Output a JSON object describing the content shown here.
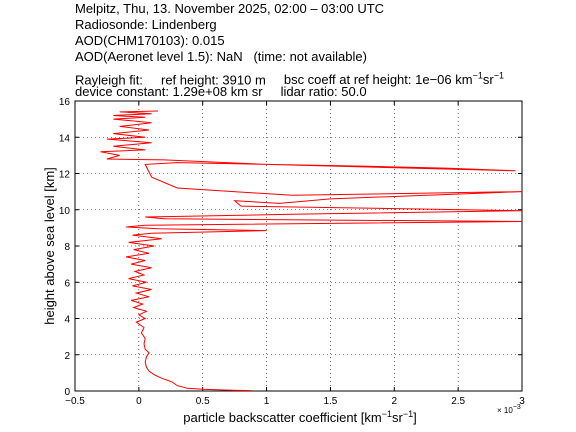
{
  "header": {
    "line1": "Melpitz, Thu, 13. November 2025, 02:00 – 03:00 UTC",
    "line2": "Radiosonde: Lindenberg",
    "line3": "AOD(CHM170103): 0.015",
    "line4_main": "AOD(Aeronet level 1.5): NaN",
    "line4_note": "(time: not available)",
    "rayleigh_label": "Rayleigh fit:",
    "ref_height": "ref height: 3910 m",
    "bsc_pre": "bsc coeff at ref height: 1e−06 km",
    "bsc_mid": "sr",
    "device_constant": "device constant: 1.29e+08 km sr",
    "lidar_ratio": "lidar ratio: 50.0",
    "exp_minus1": "−1"
  },
  "chart_data": {
    "type": "line",
    "xlabel_pre": "particle backscatter coefficient [km",
    "xlabel_mid": "sr",
    "xlabel_end": "]",
    "ylabel": "height above sea level [km]",
    "x_multiplier": "× 10",
    "x_multiplier_exp": "−3",
    "xlim": [
      -0.5,
      3.0
    ],
    "ylim": [
      0,
      16
    ],
    "xticks": [
      -0.5,
      0,
      0.5,
      1,
      1.5,
      2,
      2.5,
      3
    ],
    "xtick_labels": [
      "−0.5",
      "0",
      "0.5",
      "1",
      "1.5",
      "2",
      "2.5",
      "3"
    ],
    "yticks": [
      0,
      2,
      4,
      6,
      8,
      10,
      12,
      14,
      16
    ],
    "ytick_labels": [
      "0",
      "2",
      "4",
      "6",
      "8",
      "10",
      "12",
      "14",
      "16"
    ],
    "grid": true,
    "line_color": "#ff0000",
    "series": [
      {
        "points": [
          [
            0.88,
            0.02
          ],
          [
            0.7,
            0.05
          ],
          [
            0.5,
            0.1
          ],
          [
            0.38,
            0.15
          ],
          [
            0.3,
            0.3
          ],
          [
            0.26,
            0.5
          ],
          [
            0.18,
            0.7
          ],
          [
            0.12,
            0.9
          ],
          [
            0.08,
            1.1
          ],
          [
            0.06,
            1.3
          ],
          [
            0.05,
            1.6
          ],
          [
            0.06,
            1.9
          ],
          [
            0.08,
            2.1
          ],
          [
            0.05,
            2.3
          ],
          [
            0.04,
            2.6
          ],
          [
            0.05,
            2.9
          ],
          [
            0.02,
            3.2
          ],
          [
            0.04,
            3.5
          ],
          [
            -0.02,
            3.8
          ],
          [
            0.05,
            4.0
          ],
          [
            0.0,
            4.2
          ],
          [
            0.06,
            4.4
          ],
          [
            -0.04,
            4.6
          ],
          [
            0.03,
            4.8
          ],
          [
            -0.06,
            5.0
          ],
          [
            0.08,
            5.2
          ],
          [
            -0.02,
            5.4
          ],
          [
            0.1,
            5.6
          ],
          [
            -0.05,
            5.8
          ],
          [
            0.06,
            6.0
          ],
          [
            -0.08,
            6.2
          ],
          [
            0.04,
            6.4
          ],
          [
            -0.03,
            6.6
          ],
          [
            0.1,
            6.8
          ],
          [
            -0.06,
            7.0
          ],
          [
            0.05,
            7.2
          ],
          [
            -0.1,
            7.4
          ],
          [
            0.08,
            7.6
          ],
          [
            -0.04,
            7.8
          ],
          [
            0.12,
            8.0
          ],
          [
            -0.08,
            8.2
          ],
          [
            0.18,
            8.4
          ],
          [
            -0.05,
            8.6
          ],
          [
            0.1,
            8.7
          ],
          [
            1.0,
            8.85
          ],
          [
            0.15,
            8.95
          ],
          [
            -0.1,
            9.05
          ],
          [
            0.05,
            9.15
          ],
          [
            3.0,
            9.35
          ],
          [
            0.2,
            9.5
          ],
          [
            0.05,
            9.6
          ],
          [
            1.2,
            9.75
          ],
          [
            3.0,
            9.95
          ],
          [
            0.8,
            10.2
          ],
          [
            0.75,
            10.5
          ],
          [
            1.1,
            10.35
          ],
          [
            1.5,
            10.6
          ],
          [
            3.0,
            11.0
          ],
          [
            1.2,
            10.8
          ],
          [
            0.3,
            11.2
          ],
          [
            0.1,
            11.8
          ],
          [
            0.05,
            12.5
          ],
          [
            0.3,
            12.6
          ],
          [
            1.8,
            12.4
          ],
          [
            2.4,
            12.3
          ],
          [
            2.95,
            12.15
          ],
          [
            1.0,
            12.5
          ],
          [
            0.2,
            12.75
          ],
          [
            -0.25,
            12.8
          ],
          [
            -0.15,
            13.0
          ],
          [
            -0.3,
            13.2
          ],
          [
            0.05,
            13.3
          ],
          [
            -0.2,
            13.5
          ],
          [
            0.1,
            13.7
          ],
          [
            -0.25,
            13.9
          ],
          [
            0.05,
            14.0
          ],
          [
            -0.2,
            14.2
          ],
          [
            0.08,
            14.4
          ],
          [
            -0.15,
            14.6
          ],
          [
            0.1,
            14.8
          ],
          [
            -0.2,
            15.0
          ],
          [
            0.05,
            15.1
          ],
          [
            -0.2,
            15.2
          ],
          [
            0.1,
            15.3
          ],
          [
            -0.15,
            15.4
          ],
          [
            0.15,
            15.45
          ]
        ]
      }
    ]
  }
}
